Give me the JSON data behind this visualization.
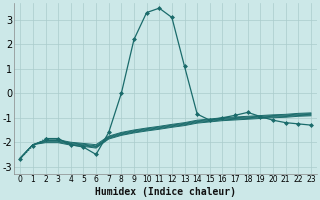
{
  "xlabel": "Humidex (Indice chaleur)",
  "background_color": "#cce8e8",
  "grid_color": "#aacccc",
  "line_color": "#1a6b6b",
  "xlim": [
    -0.5,
    23.5
  ],
  "ylim": [
    -3.3,
    3.7
  ],
  "yticks": [
    -3,
    -2,
    -1,
    0,
    1,
    2,
    3
  ],
  "xticks": [
    0,
    1,
    2,
    3,
    4,
    5,
    6,
    7,
    8,
    9,
    10,
    11,
    12,
    13,
    14,
    15,
    16,
    17,
    18,
    19,
    20,
    21,
    22,
    23
  ],
  "lines": [
    {
      "x": [
        0,
        1,
        2,
        3,
        4,
        5,
        6,
        7,
        8,
        9,
        10,
        11,
        12,
        13,
        14,
        15,
        16,
        17,
        18,
        19,
        20,
        21,
        22,
        23
      ],
      "y": [
        -2.7,
        -2.15,
        -1.85,
        -1.85,
        -2.1,
        -2.2,
        -2.5,
        -1.6,
        0.0,
        2.2,
        3.3,
        3.48,
        3.1,
        1.1,
        -0.85,
        -1.1,
        -1.0,
        -0.9,
        -0.78,
        -0.95,
        -1.1,
        -1.2,
        -1.25,
        -1.3
      ],
      "marker": true,
      "dotted_start": true,
      "dotted_end": 2
    },
    {
      "x": [
        0,
        1,
        2,
        3,
        4,
        5,
        6,
        7,
        8,
        9,
        10,
        11,
        12,
        13,
        14,
        15,
        16,
        17,
        18,
        19,
        20,
        21,
        22,
        23
      ],
      "y": [
        -2.65,
        -2.1,
        -1.9,
        -1.9,
        -2.0,
        -2.05,
        -2.1,
        -1.75,
        -1.6,
        -1.5,
        -1.42,
        -1.35,
        -1.27,
        -1.2,
        -1.1,
        -1.05,
        -1.0,
        -0.97,
        -0.94,
        -0.91,
        -0.88,
        -0.86,
        -0.82,
        -0.8
      ],
      "marker": false
    },
    {
      "x": [
        0,
        1,
        2,
        3,
        4,
        5,
        6,
        7,
        8,
        9,
        10,
        11,
        12,
        13,
        14,
        15,
        16,
        17,
        18,
        19,
        20,
        21,
        22,
        23
      ],
      "y": [
        -2.65,
        -2.1,
        -1.93,
        -1.93,
        -2.03,
        -2.08,
        -2.15,
        -1.78,
        -1.63,
        -1.53,
        -1.45,
        -1.38,
        -1.3,
        -1.23,
        -1.13,
        -1.08,
        -1.03,
        -1.0,
        -0.97,
        -0.94,
        -0.91,
        -0.89,
        -0.85,
        -0.83
      ],
      "marker": false
    },
    {
      "x": [
        0,
        1,
        2,
        3,
        4,
        5,
        6,
        7,
        8,
        9,
        10,
        11,
        12,
        13,
        14,
        15,
        16,
        17,
        18,
        19,
        20,
        21,
        22,
        23
      ],
      "y": [
        -2.65,
        -2.1,
        -1.96,
        -1.96,
        -2.06,
        -2.11,
        -2.18,
        -1.81,
        -1.66,
        -1.56,
        -1.48,
        -1.41,
        -1.33,
        -1.26,
        -1.16,
        -1.11,
        -1.06,
        -1.03,
        -1.0,
        -0.97,
        -0.94,
        -0.92,
        -0.88,
        -0.86
      ],
      "marker": false
    },
    {
      "x": [
        0,
        1,
        2,
        3,
        4,
        5,
        6,
        7,
        8,
        9,
        10,
        11,
        12,
        13,
        14,
        15,
        16,
        17,
        18,
        19,
        20,
        21,
        22,
        23
      ],
      "y": [
        -2.65,
        -2.1,
        -1.99,
        -1.99,
        -2.09,
        -2.14,
        -2.21,
        -1.84,
        -1.69,
        -1.59,
        -1.51,
        -1.44,
        -1.36,
        -1.29,
        -1.19,
        -1.14,
        -1.09,
        -1.06,
        -1.03,
        -1.0,
        -0.97,
        -0.95,
        -0.91,
        -0.89
      ],
      "marker": false
    },
    {
      "x": [
        0,
        1,
        2,
        3,
        4,
        5,
        6,
        7,
        8,
        9,
        10,
        11,
        12,
        13,
        14,
        15,
        16,
        17,
        18,
        19,
        20,
        21,
        22,
        23
      ],
      "y": [
        -2.65,
        -2.1,
        -2.02,
        -2.02,
        -2.12,
        -2.17,
        -2.24,
        -1.87,
        -1.72,
        -1.62,
        -1.54,
        -1.47,
        -1.39,
        -1.32,
        -1.22,
        -1.17,
        -1.12,
        -1.09,
        -1.06,
        -1.03,
        -1.0,
        -0.98,
        -0.94,
        -0.92
      ],
      "marker": false
    }
  ]
}
